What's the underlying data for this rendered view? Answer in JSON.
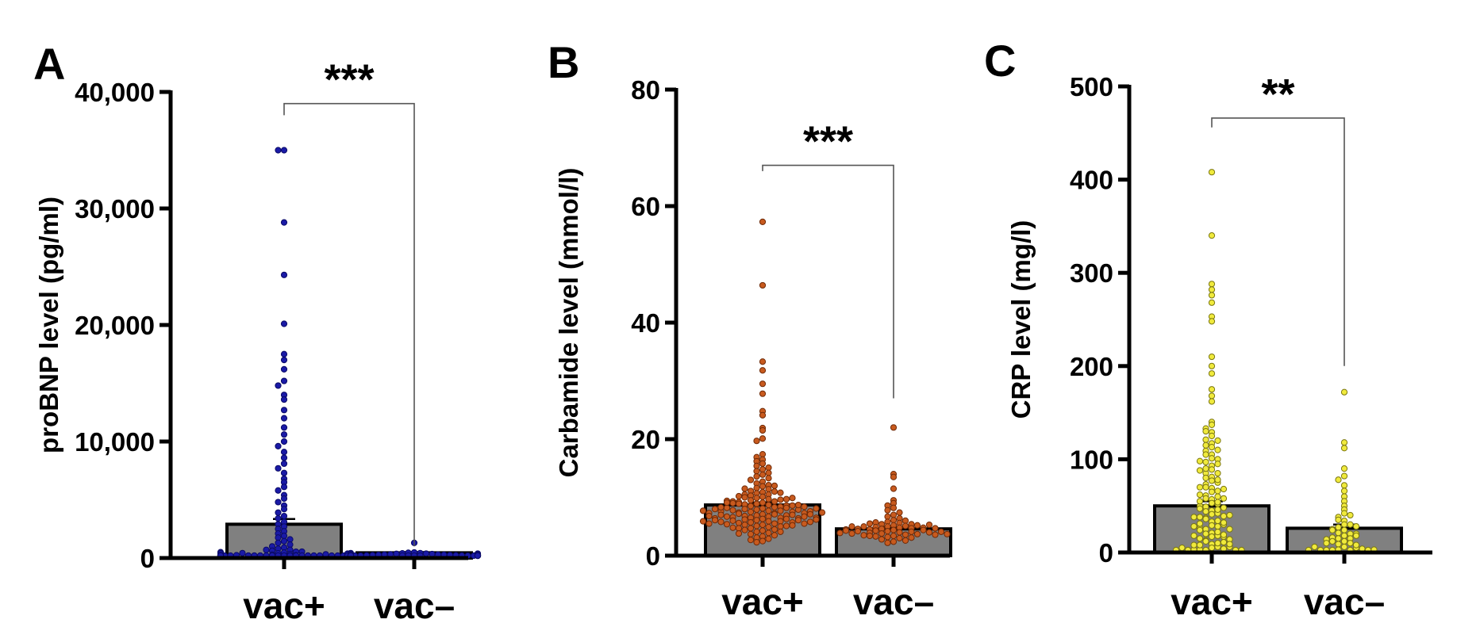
{
  "chart_data": [
    {
      "type": "bar",
      "panel": "A",
      "ylabel": "proBNP level (pg/ml)",
      "categories": [
        "vac+",
        "vac–"
      ],
      "values": [
        2900,
        450
      ],
      "sem": [
        450,
        60
      ],
      "ylim": [
        0,
        40000
      ],
      "yticks": [
        0,
        10000,
        20000,
        30000,
        40000
      ],
      "ytick_labels": [
        "0",
        "10,000",
        "20,000",
        "30,000",
        "40,000"
      ],
      "significance": {
        "label": "***",
        "bar_value": 39000,
        "left_value": 38000,
        "right_value": 1000
      },
      "colors": {
        "bar_fill": "#808080",
        "bar_edge": "#000000",
        "point_fill": "#1a1aa6",
        "point_edge": "#0a0a66"
      },
      "points": [
        [
          35000,
          35000,
          28800,
          24300,
          20100,
          17500,
          17000,
          16200,
          15200,
          14800,
          14000,
          13600,
          12700,
          12000,
          11200,
          10600,
          10000,
          9600,
          9100,
          8600,
          8100,
          7700,
          7300,
          6800,
          6500,
          6100,
          5800,
          5400,
          5100,
          4800,
          4500,
          4200,
          3900,
          3600,
          3400,
          3100,
          2900,
          2700,
          2500,
          2300,
          2100,
          1900,
          1750,
          1600,
          1450,
          1300,
          1150,
          1000,
          900,
          800,
          700,
          620,
          540,
          470,
          400,
          340,
          290,
          240,
          200,
          170,
          140,
          110,
          90,
          70,
          55,
          40,
          30,
          20,
          10,
          5,
          700,
          550,
          420,
          320,
          240,
          180,
          130,
          90,
          60,
          35,
          20,
          10,
          500,
          380,
          280,
          200,
          140,
          100,
          70,
          45,
          25,
          12,
          400,
          300,
          220,
          160,
          110,
          75,
          50,
          30,
          15,
          8,
          350,
          250,
          180,
          120,
          80,
          50,
          30,
          15
        ],
        [
          1300,
          480,
          450,
          420,
          400,
          380,
          360,
          340,
          320,
          300,
          290,
          280,
          270,
          260,
          250,
          240,
          230,
          220,
          210,
          200,
          190,
          180,
          170,
          160,
          150,
          140,
          130,
          120,
          110,
          100,
          90,
          80,
          70,
          60,
          50,
          40,
          30,
          20,
          350,
          310,
          270,
          230,
          190,
          150,
          110,
          70,
          30,
          420,
          380,
          340,
          300,
          260,
          220,
          180,
          140,
          100,
          60,
          20
        ]
      ]
    },
    {
      "type": "bar",
      "panel": "B",
      "ylabel": "Carbamide level (mmol/l)",
      "categories": [
        "vac+",
        "vac–"
      ],
      "values": [
        8.7,
        4.6
      ],
      "sem": [
        0.45,
        0.3
      ],
      "ylim": [
        0,
        80
      ],
      "yticks": [
        0,
        20,
        40,
        60,
        80
      ],
      "ytick_labels": [
        "0",
        "20",
        "40",
        "60",
        "80"
      ],
      "significance": {
        "label": "***",
        "bar_value": 67,
        "left_value": 66,
        "right_value": 27
      },
      "colors": {
        "bar_fill": "#808080",
        "bar_edge": "#000000",
        "point_fill": "#c85a1e",
        "point_edge": "#6e2a08"
      },
      "points": [
        [
          57.3,
          46.4,
          33.3,
          31.8,
          29.5,
          27.8,
          24.8,
          24.1,
          21.9,
          21.5,
          20.1,
          19.7,
          17.4,
          16.9,
          16.5,
          16.2,
          15.8,
          15.4,
          15.1,
          14.8,
          14.5,
          14.2,
          13.9,
          13.6,
          13.3,
          13.0,
          12.7,
          12.4,
          12.1,
          11.9,
          11.6,
          11.4,
          11.1,
          10.9,
          10.7,
          10.5,
          10.3,
          10.1,
          9.9,
          9.7,
          9.5,
          9.3,
          9.1,
          8.9,
          8.7,
          8.5,
          8.3,
          8.1,
          7.9,
          7.7,
          7.5,
          7.3,
          7.1,
          6.9,
          6.7,
          6.5,
          6.3,
          6.1,
          5.9,
          5.7,
          5.5,
          5.3,
          5.1,
          4.9,
          4.7,
          4.5,
          4.3,
          4.1,
          3.9,
          3.7,
          3.5,
          3.3,
          3.1,
          2.9,
          2.7,
          2.5,
          2.3,
          12.0,
          11.5,
          11.0,
          10.5,
          10.0,
          9.6,
          9.2,
          8.8,
          8.4,
          8.0,
          7.7,
          7.4,
          7.1,
          6.8,
          6.5,
          6.2,
          5.9,
          5.6,
          5.3,
          5.0,
          4.7,
          4.4,
          4.1,
          3.8,
          10.8,
          10.2,
          9.7,
          9.3,
          8.9,
          8.6,
          8.2,
          7.8,
          7.5,
          7.2,
          6.9,
          6.6,
          6.3,
          6.0,
          5.7,
          5.4,
          5.1,
          4.8,
          9.9,
          9.4,
          9.0,
          8.6,
          8.2,
          7.9,
          7.6,
          7.3,
          7.0,
          6.7,
          6.4,
          6.1,
          5.8,
          5.5,
          5.2,
          9.1,
          8.7,
          8.3,
          8.0,
          7.6,
          7.3,
          7.0,
          6.7,
          6.4,
          6.1,
          5.8,
          5.5,
          8.4,
          8.1,
          7.7,
          7.4,
          7.1,
          6.8,
          6.5,
          6.2,
          5.9
        ],
        [
          22.0,
          14.0,
          13.5,
          11.5,
          9.5,
          9.0,
          8.6,
          8.2,
          7.8,
          7.4,
          7.0,
          6.7,
          6.4,
          6.1,
          5.8,
          5.6,
          5.4,
          5.2,
          5.0,
          4.8,
          4.6,
          4.4,
          4.2,
          4.0,
          3.8,
          3.6,
          3.4,
          3.2,
          3.0,
          2.8,
          2.6,
          2.4,
          2.2,
          6.0,
          5.7,
          5.4,
          5.1,
          4.9,
          4.7,
          4.5,
          4.3,
          4.1,
          3.9,
          3.7,
          3.5,
          3.3,
          3.1,
          5.5,
          5.2,
          5.0,
          4.8,
          4.6,
          4.4,
          4.2,
          4.0,
          3.8,
          3.6,
          3.4,
          5.3,
          5.0,
          4.7,
          4.5,
          4.3,
          4.1,
          3.9,
          3.7
        ]
      ]
    },
    {
      "type": "bar",
      "panel": "C",
      "ylabel": "CRP level (mg/l)",
      "categories": [
        "vac+",
        "vac–"
      ],
      "values": [
        50,
        26
      ],
      "sem": [
        5,
        4
      ],
      "ylim": [
        0,
        500
      ],
      "yticks": [
        0,
        100,
        200,
        300,
        400,
        500
      ],
      "ytick_labels": [
        "0",
        "100",
        "200",
        "300",
        "400",
        "500"
      ],
      "significance": {
        "label": "**",
        "bar_value": 466,
        "left_value": 456,
        "right_value": 200
      },
      "colors": {
        "bar_fill": "#808080",
        "bar_edge": "#000000",
        "point_fill": "#f0ea3c",
        "point_edge": "#7a7610"
      },
      "points": [
        [
          408,
          340,
          288,
          282,
          276,
          268,
          253,
          248,
          210,
          200,
          192,
          175,
          168,
          162,
          140,
          137,
          133,
          129,
          125,
          121,
          117,
          113,
          109,
          105,
          101,
          97,
          93,
          89,
          85,
          81,
          77,
          73,
          69,
          65,
          61,
          57,
          53,
          49,
          45,
          41,
          37,
          33,
          29,
          25,
          21,
          17,
          13,
          9,
          5,
          2,
          120,
          110,
          100,
          90,
          80,
          70,
          60,
          52,
          44,
          36,
          28,
          20,
          12,
          6,
          3,
          95,
          85,
          75,
          66,
          58,
          50,
          42,
          34,
          26,
          18,
          10,
          4,
          70,
          62,
          54,
          46,
          38,
          30,
          22,
          15,
          8,
          3,
          55,
          47,
          39,
          31,
          24,
          17,
          11,
          6,
          2,
          130,
          115,
          105,
          98,
          88,
          78,
          68,
          58,
          48,
          38,
          28,
          18,
          8,
          2,
          40,
          32,
          25,
          19,
          14,
          9,
          5,
          2,
          1
        ],
        [
          172,
          118,
          112,
          90,
          82,
          78,
          72,
          66,
          60,
          55,
          50,
          46,
          42,
          38,
          34,
          30,
          27,
          24,
          21,
          18,
          15,
          12,
          9,
          6,
          3,
          2,
          1,
          40,
          35,
          30,
          25,
          20,
          15,
          10,
          5,
          2,
          28,
          24,
          20,
          16,
          12,
          8,
          4,
          2,
          1,
          18,
          14,
          10,
          6,
          3,
          1
        ]
      ]
    }
  ]
}
